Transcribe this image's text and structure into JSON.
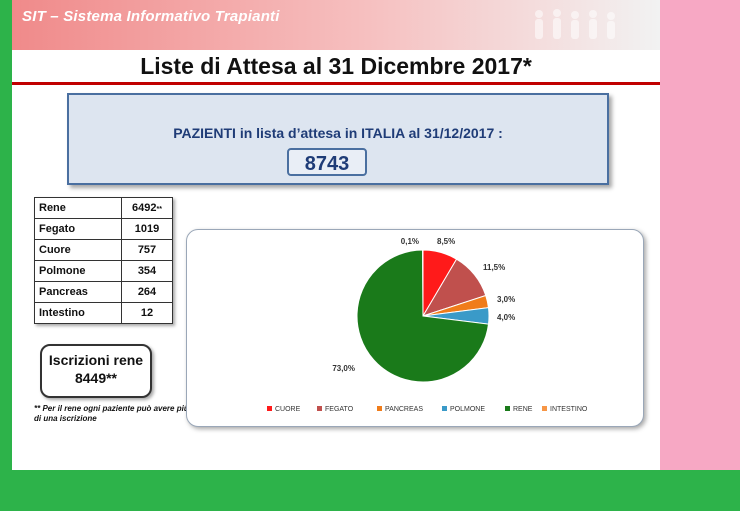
{
  "header": {
    "app_title": "SIT – Sistema Informativo Trapianti",
    "slide_title": "Liste di Attesa al 31 Dicembre 2017*"
  },
  "summary": {
    "label": "PAZIENTI in lista  d’attesa in ITALIA al 31/12/2017 :",
    "value": "8743"
  },
  "organs": [
    {
      "name": "Rene",
      "value": "6492",
      "mark": "**"
    },
    {
      "name": "Fegato",
      "value": "1019",
      "mark": ""
    },
    {
      "name": "Cuore",
      "value": "757",
      "mark": ""
    },
    {
      "name": "Polmone",
      "value": "354",
      "mark": ""
    },
    {
      "name": "Pancreas",
      "value": "264",
      "mark": ""
    },
    {
      "name": "Intestino",
      "value": "12",
      "mark": ""
    }
  ],
  "iscrizioni": {
    "label": "Iscrizioni rene",
    "value": "8449**"
  },
  "note": "** Per il rene ogni paziente può avere   più di una iscrizione",
  "colors": {
    "title_line": "#c00000",
    "summary_text": "#1f3c77"
  },
  "chart_data": {
    "type": "pie",
    "legend_position": "bottom",
    "slices": [
      {
        "name": "CUORE",
        "value": 8.5,
        "label": "8,5%",
        "color": "#ff1a1a"
      },
      {
        "name": "FEGATO",
        "value": 11.5,
        "label": "11,5%",
        "color": "#c0504d"
      },
      {
        "name": "PANCREAS",
        "value": 3.0,
        "label": "3,0%",
        "color": "#f07c1a"
      },
      {
        "name": "POLMONE",
        "value": 4.0,
        "label": "4,0%",
        "color": "#3a9ac8"
      },
      {
        "name": "RENE",
        "value": 73.0,
        "label": "73,0%",
        "color": "#1a7a1a"
      },
      {
        "name": "INTESTINO",
        "value": 0.1,
        "label": "0,1%",
        "color": "#f79646"
      }
    ]
  }
}
